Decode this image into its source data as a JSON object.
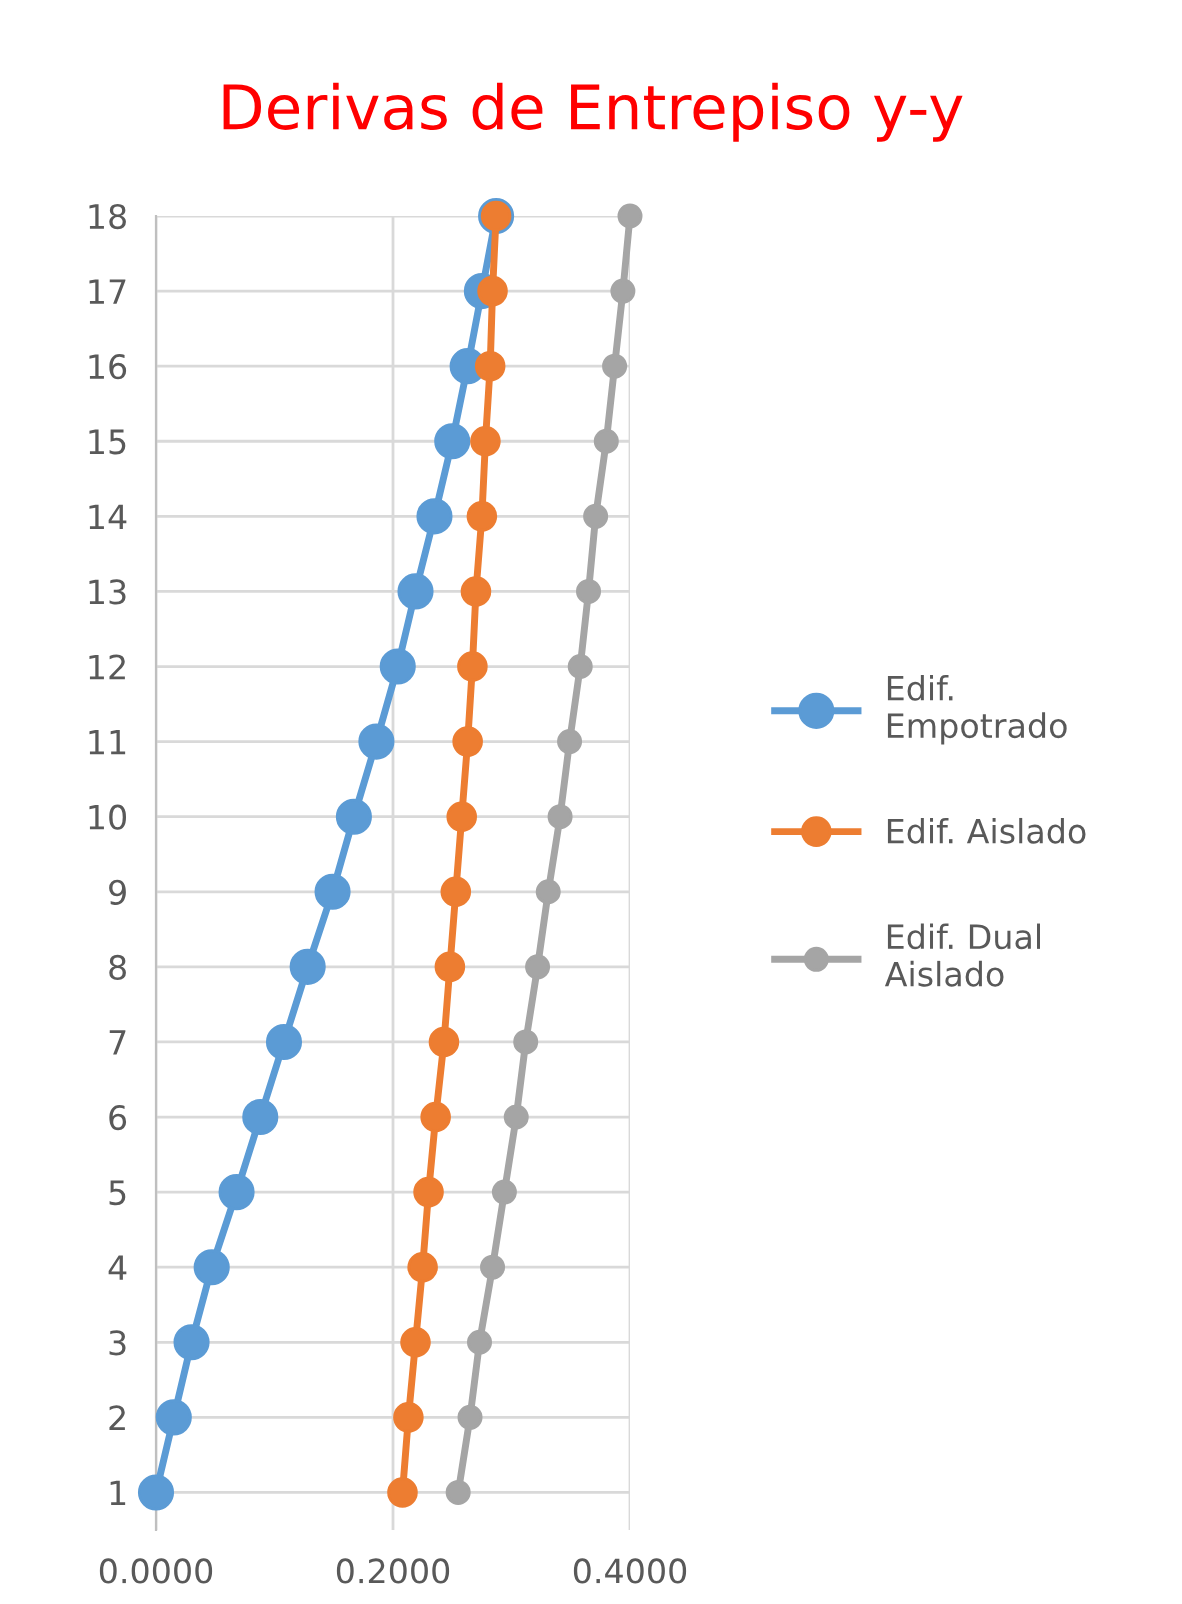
{
  "chart_data": {
    "type": "line",
    "title": "Derivas de Entrepiso y-y",
    "series": [
      {
        "name": "Edif. Empotrado",
        "color": "#5b9bd5",
        "x": [
          0.0,
          0.015,
          0.03,
          0.047,
          0.068,
          0.088,
          0.108,
          0.128,
          0.149,
          0.167,
          0.186,
          0.204,
          0.219,
          0.235,
          0.25,
          0.263,
          0.275,
          0.287
        ],
        "values": [
          1,
          2,
          3,
          4,
          5,
          6,
          7,
          8,
          9,
          10,
          11,
          12,
          13,
          14,
          15,
          16,
          17,
          18
        ]
      },
      {
        "name": "Edif. Aislado",
        "color": "#ed7d31",
        "x": [
          0.208,
          0.213,
          0.219,
          0.225,
          0.23,
          0.236,
          0.243,
          0.248,
          0.253,
          0.258,
          0.263,
          0.267,
          0.27,
          0.275,
          0.278,
          0.282,
          0.284,
          0.287
        ],
        "values": [
          1,
          2,
          3,
          4,
          5,
          6,
          7,
          8,
          9,
          10,
          11,
          12,
          13,
          14,
          15,
          16,
          17,
          18
        ]
      },
      {
        "name": "Edif. Dual Aislado",
        "color": "#a5a5a5",
        "x": [
          0.255,
          0.265,
          0.273,
          0.284,
          0.294,
          0.304,
          0.312,
          0.322,
          0.331,
          0.341,
          0.349,
          0.358,
          0.365,
          0.371,
          0.38,
          0.387,
          0.394,
          0.4
        ],
        "values": [
          1,
          2,
          3,
          4,
          5,
          6,
          7,
          8,
          9,
          10,
          11,
          12,
          13,
          14,
          15,
          16,
          17,
          18
        ]
      }
    ],
    "xlim": [
      0,
      0.4
    ],
    "xticks": [
      {
        "value": 0,
        "label": "0.0000"
      },
      {
        "value": 0.2,
        "label": "0.2000"
      },
      {
        "value": 0.4,
        "label": "0.4000"
      }
    ],
    "ylim": [
      0.5,
      18
    ],
    "yticks": [
      1,
      2,
      3,
      4,
      5,
      6,
      7,
      8,
      9,
      10,
      11,
      12,
      13,
      14,
      15,
      16,
      17,
      18
    ],
    "grid": true,
    "legend": "right",
    "marker": "circle",
    "line_style": "solid"
  }
}
